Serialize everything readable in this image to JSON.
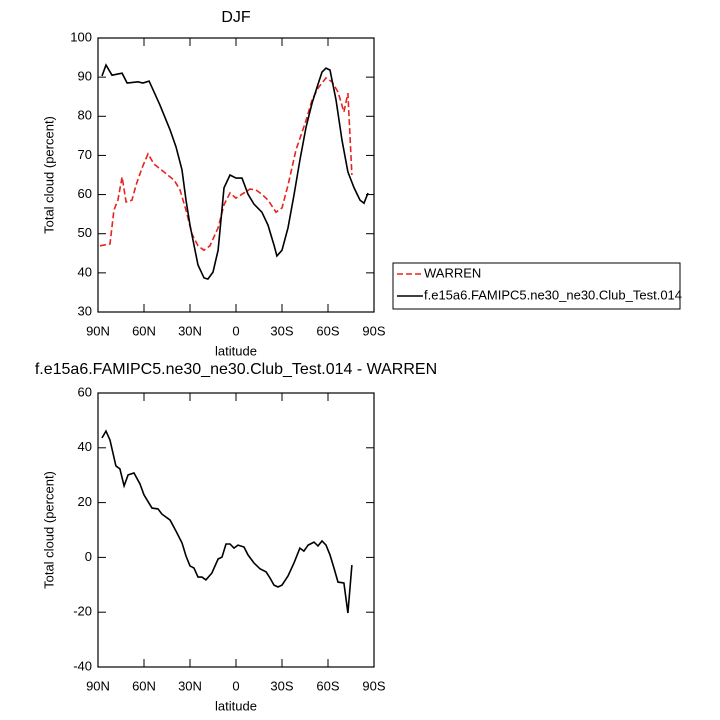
{
  "chart_data": [
    {
      "type": "line",
      "title": "DJF",
      "x_label": "latitude",
      "y_label": "Total cloud (percent)",
      "xlim": [
        90,
        -90
      ],
      "xticks": [
        {
          "value": 90,
          "label": "90N"
        },
        {
          "value": 60,
          "label": "60N"
        },
        {
          "value": 30,
          "label": "30N"
        },
        0,
        {
          "value": -30,
          "label": "30S"
        },
        {
          "value": -60,
          "label": "60S"
        },
        {
          "value": -90,
          "label": "90S"
        }
      ],
      "ylim": [
        30,
        100
      ],
      "yticks": [
        30,
        40,
        50,
        60,
        70,
        80,
        90,
        100
      ],
      "legend": "right",
      "series": [
        {
          "name": "WARREN",
          "color": "#e8231f",
          "dashed": true,
          "x": [
            88.7,
            82.2,
            79.6,
            77,
            74.3,
            71.7,
            67.8,
            65.2,
            61.3,
            57.4,
            53.5,
            47,
            40.4,
            36.5,
            32.6,
            28.7,
            24.8,
            20.9,
            17,
            11.7,
            7.8,
            3.9,
            0,
            -3.9,
            -9.1,
            -13,
            -16.9,
            -20.9,
            -26.1,
            -30,
            -33.9,
            -39.1,
            -45.7,
            -49.6,
            -53.5,
            -58.7,
            -62.6,
            -66.5,
            -70.4,
            -73,
            -75.6
          ],
          "values": [
            46.9,
            47.4,
            56,
            58.6,
            64.5,
            58.1,
            58.6,
            62.4,
            66.8,
            70.4,
            67.8,
            65.8,
            63.7,
            61.2,
            56,
            49.9,
            46.9,
            45.8,
            46.9,
            51.5,
            57.4,
            60.4,
            59.1,
            60.1,
            61.4,
            61.2,
            60.1,
            58.6,
            55.5,
            56.6,
            62.4,
            71.4,
            79,
            84.2,
            87.2,
            89.8,
            88.8,
            86.2,
            81.1,
            85.9,
            65
          ]
        },
        {
          "name": "f.e15a6.FAMIPC5.ne30_ne30.Club_Test.014",
          "color": "#000000",
          "dashed": false,
          "x": [
            87.4,
            84.8,
            80.9,
            74.3,
            71,
            63.9,
            60.7,
            56.7,
            49.6,
            43,
            39.1,
            35.2,
            32.6,
            30,
            27.4,
            24.8,
            20.9,
            18.3,
            15,
            11.7,
            7.8,
            3.9,
            0,
            -3.9,
            -7.8,
            -11.7,
            -16.9,
            -20.9,
            -24.8,
            -26.7,
            -30,
            -33.9,
            -37.8,
            -41.7,
            -45.7,
            -49.6,
            -53.5,
            -56.1,
            -58.7,
            -61.3,
            -65.2,
            -69.1,
            -73,
            -77,
            -80.9,
            -83.5,
            -86.1
          ],
          "values": [
            90.3,
            93.1,
            90.5,
            91,
            88.5,
            88.8,
            88.5,
            89,
            82.9,
            76.5,
            72.2,
            66.3,
            58.6,
            52.2,
            47.1,
            42,
            38.7,
            38.4,
            40.2,
            45.8,
            61.7,
            65,
            64.2,
            64.2,
            60.1,
            57.6,
            55.5,
            52.2,
            47.1,
            44.3,
            45.8,
            51.5,
            59.9,
            68.8,
            77.3,
            83.4,
            88.2,
            91.3,
            92.3,
            91.8,
            84.2,
            73.9,
            65.8,
            61.7,
            58.6,
            57.8,
            60.4
          ]
        }
      ]
    },
    {
      "type": "line",
      "title": "f.e15a6.FAMIPC5.ne30_ne30.Club_Test.014 - WARREN",
      "x_label": "latitude",
      "y_label": "Total cloud (percent)",
      "xlim": [
        90,
        -90
      ],
      "xticks": [
        {
          "value": 90,
          "label": "90N"
        },
        {
          "value": 60,
          "label": "60N"
        },
        {
          "value": 30,
          "label": "30N"
        },
        0,
        {
          "value": -30,
          "label": "30S"
        },
        {
          "value": -60,
          "label": "60S"
        },
        {
          "value": -90,
          "label": "90S"
        }
      ],
      "ylim": [
        -40,
        60
      ],
      "yticks": [
        -40,
        -20,
        0,
        20,
        40,
        60
      ],
      "series": [
        {
          "color": "#000000",
          "dashed": false,
          "x": [
            87.4,
            84.8,
            82.2,
            78.3,
            75.7,
            73,
            70.4,
            66.5,
            62.6,
            60,
            54.8,
            50.9,
            48.3,
            43,
            39.1,
            35.2,
            32.6,
            30,
            27.4,
            24.8,
            22.2,
            19.6,
            15.7,
            11.7,
            9.1,
            6.5,
            3.9,
            1.3,
            -1.3,
            -5.2,
            -7.8,
            -11.7,
            -15.7,
            -19.6,
            -22.2,
            -24.8,
            -27.4,
            -30,
            -33.9,
            -37.8,
            -41.7,
            -44.3,
            -47,
            -50.9,
            -53.5,
            -56.1,
            -58.7,
            -61.3,
            -63.9,
            -66.5,
            -70.4,
            -73,
            -75.6
          ],
          "values": [
            43.6,
            46.1,
            42.8,
            33.4,
            32.3,
            26.1,
            30.1,
            30.8,
            26.8,
            22.8,
            18,
            17.7,
            15.8,
            13.6,
            9.6,
            5.3,
            0.5,
            -3.1,
            -3.9,
            -7.2,
            -7.2,
            -8.2,
            -5.7,
            -0.6,
            0.1,
            4.9,
            4.9,
            3.4,
            4.5,
            3.8,
            0.9,
            -2,
            -4.2,
            -5.3,
            -7.5,
            -10.1,
            -10.8,
            -10.1,
            -6.8,
            -2,
            3.4,
            2.3,
            4.5,
            5.6,
            4.2,
            6,
            4.5,
            0.9,
            -3.9,
            -9,
            -9.3,
            -20.3,
            -2.8
          ]
        }
      ]
    }
  ]
}
